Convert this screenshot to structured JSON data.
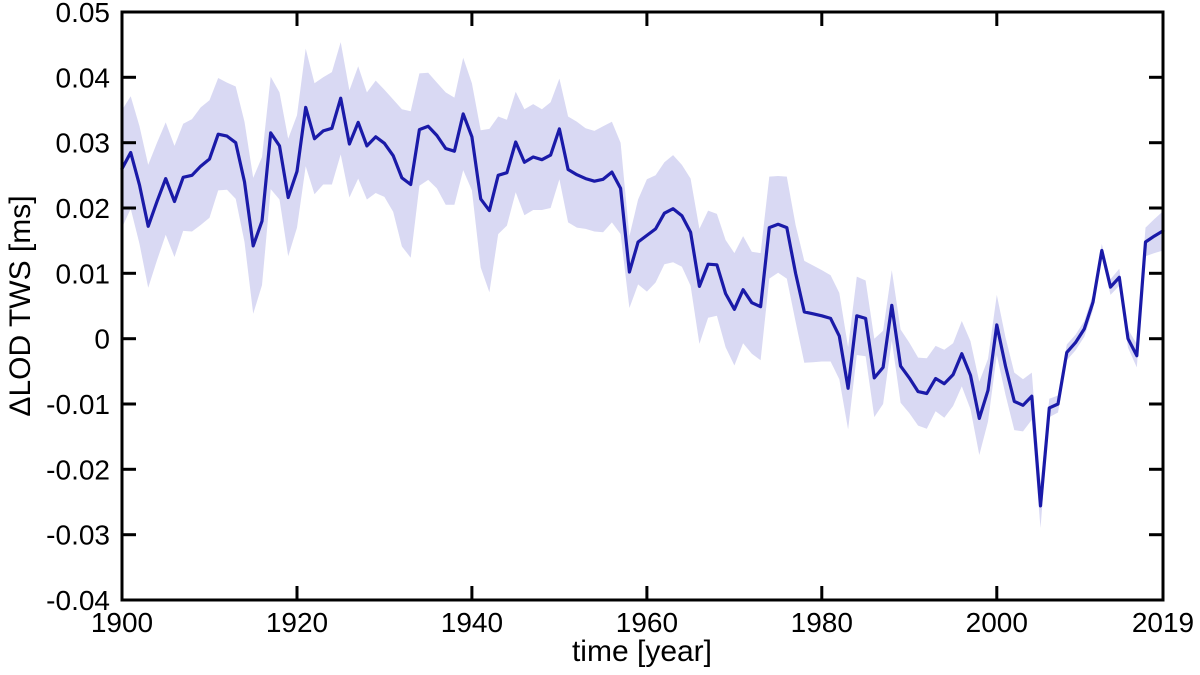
{
  "figure": {
    "background": "#ffffff",
    "kind": "line chart with uncertainty band"
  },
  "chart_data": {
    "type": "line",
    "title": "",
    "xlabel": "time [year]",
    "ylabel": "ΔLOD TWS [ms]",
    "xlim": [
      1900,
      2019
    ],
    "ylim": [
      -0.04,
      0.05
    ],
    "x_step": 1,
    "grid": false,
    "legend": "none",
    "x_ticks": [
      1900,
      1920,
      1940,
      1960,
      1980,
      2000,
      2019
    ],
    "x_tick_labels": [
      "1900",
      "1920",
      "1940",
      "1960",
      "1980",
      "2000",
      "2019"
    ],
    "y_ticks": [
      0.05,
      0.04,
      0.03,
      0.02,
      0.01,
      0,
      -0.01,
      -0.02,
      -0.03,
      -0.04
    ],
    "y_tick_labels": [
      "0.05",
      "0.04",
      "0.03",
      "0.02",
      "0.01",
      "0",
      "-0.01",
      "-0.02",
      "-0.03",
      "-0.04"
    ],
    "axis_color": "#000000",
    "series": [
      {
        "name": "delta-LOD-due-to-TWS",
        "color": "#1a1aa8",
        "line_width": 3.2,
        "values": [
          0.026,
          0.0285,
          0.0235,
          0.0172,
          0.021,
          0.0245,
          0.021,
          0.0247,
          0.025,
          0.0264,
          0.0275,
          0.0313,
          0.031,
          0.03,
          0.024,
          0.0142,
          0.018,
          0.0315,
          0.0295,
          0.0216,
          0.0256,
          0.0354,
          0.0306,
          0.0318,
          0.0322,
          0.0368,
          0.0298,
          0.0331,
          0.0295,
          0.0309,
          0.0299,
          0.028,
          0.0246,
          0.0236,
          0.032,
          0.0325,
          0.0311,
          0.0291,
          0.0287,
          0.0344,
          0.0309,
          0.0214,
          0.0196,
          0.025,
          0.0254,
          0.0301,
          0.027,
          0.0278,
          0.0274,
          0.0281,
          0.0321,
          0.0259,
          0.0251,
          0.0245,
          0.0241,
          0.0244,
          0.0255,
          0.023,
          0.0102,
          0.0148,
          0.0158,
          0.0168,
          0.0192,
          0.0199,
          0.0188,
          0.0163,
          0.008,
          0.0114,
          0.0113,
          0.0069,
          0.0045,
          0.0075,
          0.0055,
          0.0049,
          0.017,
          0.0175,
          0.017,
          0.01,
          0.0041,
          0.0038,
          0.0035,
          0.0031,
          0.0004,
          -0.0076,
          0.0035,
          0.0031,
          -0.006,
          -0.0044,
          0.0051,
          -0.0042,
          -0.006,
          -0.0081,
          -0.0084,
          -0.0061,
          -0.0069,
          -0.0055,
          -0.0023,
          -0.0056,
          -0.0122,
          -0.0079,
          0.0021,
          -0.0042,
          -0.0096,
          -0.0102,
          -0.0088,
          -0.0256,
          -0.0106,
          -0.01,
          -0.0021,
          -0.0006,
          0.0015,
          0.0056,
          0.0135,
          0.0079,
          0.0094,
          0.0,
          -0.0026,
          0.0148,
          0.0157,
          0.0165
        ]
      }
    ],
    "band": {
      "name": "uncertainty-band",
      "color": "#d9d9f3",
      "halfwidth": [
        0.009,
        0.0086,
        0.009,
        0.0094,
        0.009,
        0.0086,
        0.0085,
        0.0082,
        0.0086,
        0.009,
        0.009,
        0.0086,
        0.0082,
        0.0086,
        0.0092,
        0.0104,
        0.0098,
        0.0086,
        0.0082,
        0.009,
        0.0086,
        0.009,
        0.0085,
        0.0082,
        0.0086,
        0.0086,
        0.0082,
        0.0086,
        0.0082,
        0.0086,
        0.0082,
        0.0086,
        0.0105,
        0.0112,
        0.0086,
        0.0082,
        0.0081,
        0.0086,
        0.0082,
        0.0086,
        0.0082,
        0.0105,
        0.0125,
        0.009,
        0.0081,
        0.0077,
        0.0081,
        0.0081,
        0.0077,
        0.0081,
        0.0077,
        0.0081,
        0.0081,
        0.0077,
        0.0077,
        0.0081,
        0.0077,
        0.007,
        0.0055,
        0.0065,
        0.0086,
        0.0082,
        0.0078,
        0.0082,
        0.0078,
        0.0082,
        0.0088,
        0.0082,
        0.0078,
        0.0082,
        0.0086,
        0.0082,
        0.0078,
        0.0082,
        0.0078,
        0.0074,
        0.0078,
        0.0074,
        0.0078,
        0.0074,
        0.007,
        0.0066,
        0.0066,
        0.0063,
        0.006,
        0.0058,
        0.006,
        0.0056,
        0.0054,
        0.0056,
        0.0054,
        0.0052,
        0.0054,
        0.005,
        0.0052,
        0.0048,
        0.005,
        0.0052,
        0.0056,
        0.0048,
        0.0046,
        0.0044,
        0.0044,
        0.004,
        0.0036,
        0.0034,
        0.0014,
        0.0013,
        0.0012,
        0.0012,
        0.0012,
        0.0012,
        0.001,
        0.0012,
        0.0013,
        0.0014,
        0.0018,
        0.0022,
        0.0026,
        0.003
      ]
    }
  }
}
